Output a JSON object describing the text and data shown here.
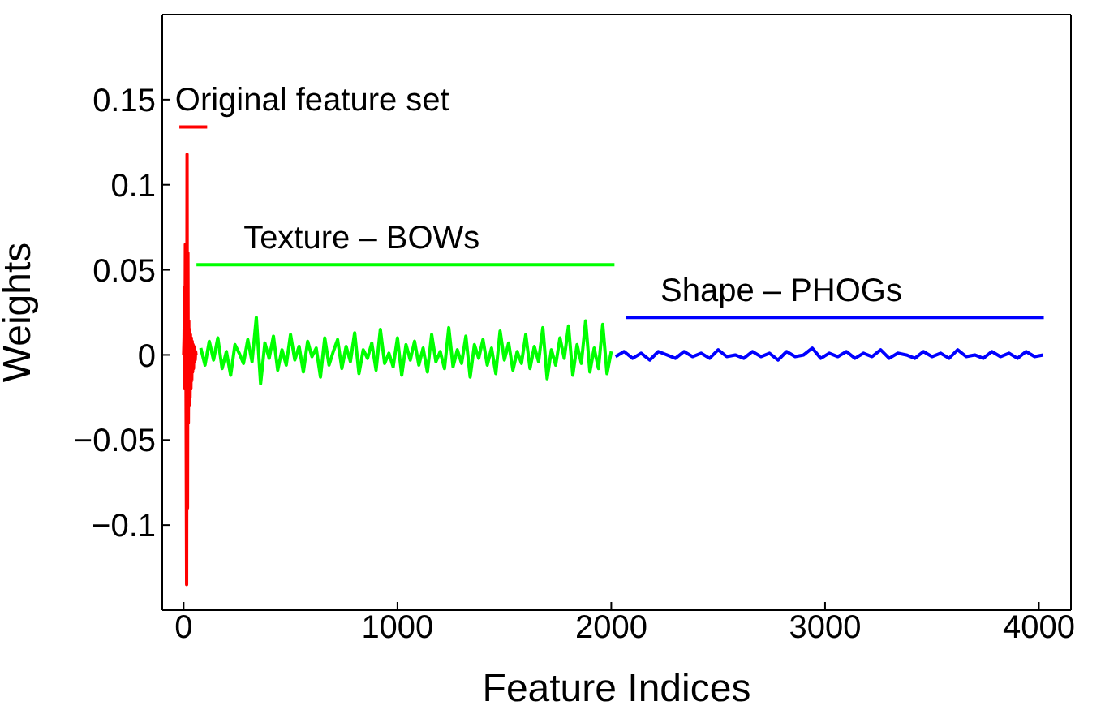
{
  "chart_data": {
    "type": "line",
    "xlabel": "Feature Indices",
    "ylabel": "Weights",
    "xlim": [
      -100,
      4150
    ],
    "ylim": [
      -0.15,
      0.2
    ],
    "xticks": [
      0,
      1000,
      2000,
      3000,
      4000
    ],
    "yticks": [
      -0.1,
      -0.05,
      0,
      0.05,
      0.1,
      0.15
    ],
    "marker": "none",
    "line_style": "solid",
    "series": [
      {
        "color": "#ff0000",
        "x": [
          0,
          2,
          4,
          6,
          8,
          10,
          12,
          14,
          16,
          18,
          20,
          22,
          24,
          26,
          28,
          30,
          32,
          34,
          36,
          38,
          40,
          42,
          44,
          46,
          48,
          50,
          52,
          54,
          56,
          58
        ],
        "values": [
          0,
          0.01,
          0.04,
          -0.02,
          0.065,
          0.03,
          -0.05,
          -0.135,
          0.118,
          -0.09,
          0.06,
          -0.04,
          0.02,
          -0.03,
          0.015,
          -0.025,
          0.012,
          -0.02,
          0.01,
          -0.015,
          0.008,
          -0.01,
          0.006,
          -0.008,
          0.005,
          -0.004,
          0.003,
          -0.003,
          0.002,
          0
        ]
      },
      {
        "color": "#00ff00",
        "x": [
          80,
          100,
          120,
          140,
          160,
          180,
          200,
          220,
          240,
          260,
          280,
          300,
          320,
          340,
          360,
          380,
          400,
          420,
          440,
          460,
          480,
          500,
          520,
          540,
          560,
          580,
          600,
          620,
          640,
          660,
          680,
          700,
          720,
          740,
          760,
          780,
          800,
          820,
          840,
          860,
          880,
          900,
          920,
          940,
          960,
          980,
          1000,
          1020,
          1040,
          1060,
          1080,
          1100,
          1120,
          1140,
          1160,
          1180,
          1200,
          1220,
          1240,
          1260,
          1280,
          1300,
          1320,
          1340,
          1360,
          1380,
          1400,
          1420,
          1440,
          1460,
          1480,
          1500,
          1520,
          1540,
          1560,
          1580,
          1600,
          1620,
          1640,
          1660,
          1680,
          1700,
          1720,
          1740,
          1760,
          1780,
          1800,
          1820,
          1840,
          1860,
          1880,
          1900,
          1920,
          1940,
          1960,
          1980,
          2000
        ],
        "values": [
          0.004,
          -0.006,
          0.008,
          -0.003,
          0.01,
          -0.008,
          0.002,
          -0.012,
          0.006,
          0.001,
          -0.005,
          0.009,
          -0.004,
          0.022,
          -0.017,
          0.007,
          -0.002,
          0.011,
          -0.009,
          0.003,
          -0.006,
          0.012,
          -0.003,
          0.005,
          -0.01,
          0.008,
          -0.001,
          0.004,
          -0.013,
          0.01,
          -0.006,
          0.002,
          0.009,
          -0.008,
          0.005,
          -0.004,
          0.013,
          -0.011,
          0.003,
          -0.002,
          0.007,
          -0.009,
          0.015,
          -0.005,
          0.001,
          -0.007,
          0.01,
          -0.012,
          0.006,
          -0.003,
          0.008,
          -0.006,
          0.004,
          -0.01,
          0.012,
          -0.004,
          0.002,
          -0.008,
          0.016,
          -0.007,
          0.003,
          -0.005,
          0.011,
          -0.013,
          0.006,
          -0.002,
          0.009,
          -0.006,
          0.004,
          -0.011,
          0.014,
          -0.003,
          0.007,
          -0.009,
          0.002,
          -0.005,
          0.012,
          -0.008,
          0.005,
          -0.004,
          0.016,
          -0.014,
          0.003,
          -0.006,
          0.01,
          -0.002,
          0.017,
          -0.012,
          0.006,
          -0.005,
          0.02,
          -0.01,
          0.004,
          -0.008,
          0.018,
          -0.011,
          0.002
        ]
      },
      {
        "color": "#0000ff",
        "x": [
          2020,
          2060,
          2100,
          2140,
          2180,
          2220,
          2260,
          2300,
          2340,
          2380,
          2420,
          2460,
          2500,
          2540,
          2580,
          2620,
          2660,
          2700,
          2740,
          2780,
          2820,
          2860,
          2900,
          2940,
          2980,
          3020,
          3060,
          3100,
          3140,
          3180,
          3220,
          3260,
          3300,
          3340,
          3380,
          3420,
          3460,
          3500,
          3540,
          3580,
          3620,
          3660,
          3700,
          3740,
          3780,
          3820,
          3860,
          3900,
          3940,
          3980,
          4020
        ],
        "values": [
          -0.001,
          0.002,
          -0.002,
          0.001,
          -0.003,
          0.002,
          0.0,
          -0.002,
          0.002,
          -0.001,
          0.001,
          -0.002,
          0.003,
          -0.001,
          0.0,
          -0.002,
          0.002,
          -0.001,
          0.001,
          -0.003,
          0.002,
          -0.001,
          0.0,
          0.004,
          -0.002,
          0.001,
          -0.001,
          0.002,
          -0.002,
          0.001,
          -0.001,
          0.003,
          -0.002,
          0.001,
          0.0,
          -0.002,
          0.002,
          -0.001,
          0.001,
          -0.002,
          0.003,
          -0.001,
          0.0,
          -0.002,
          0.002,
          -0.001,
          0.001,
          -0.002,
          0.002,
          -0.001,
          0.0
        ]
      },
      {
        "color": "#ff0000",
        "x": [
          -20,
          110
        ],
        "values": [
          0.134,
          0.134
        ]
      },
      {
        "color": "#00ff00",
        "x": [
          60,
          2015
        ],
        "values": [
          0.053,
          0.053
        ]
      },
      {
        "color": "#0000ff",
        "x": [
          2068,
          4023
        ],
        "values": [
          0.022,
          0.022
        ]
      }
    ],
    "annotations": [
      {
        "text": "Original feature set",
        "x": -40,
        "y": 0.134
      },
      {
        "text": "Texture – BOWs",
        "x": 280,
        "y": 0.053
      },
      {
        "text": "Shape – PHOGs",
        "x": 2230,
        "y": 0.022
      }
    ]
  }
}
